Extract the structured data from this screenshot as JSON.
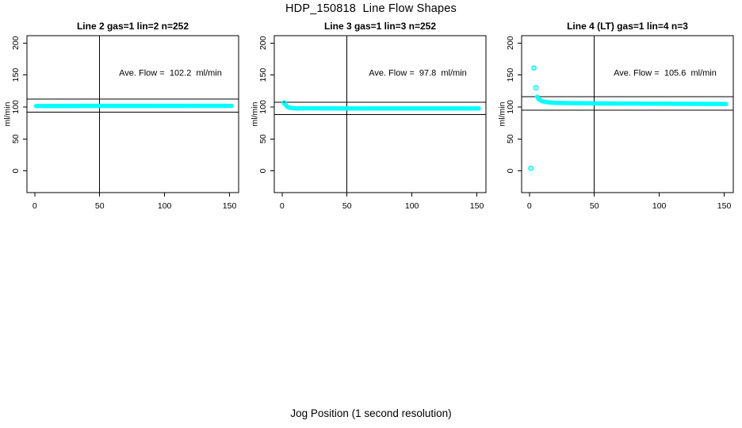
{
  "figure": {
    "title": "HDP_150818  Line Flow Shapes",
    "xlabel": "Jog Position (1 second resolution)",
    "background_color": "#FFFFFF",
    "foreground_color": "#000000",
    "point_color": "#00FFFF"
  },
  "chart_data": [
    {
      "type": "scatter",
      "title": "Line 2 gas=1 lin=2 n=252",
      "n": 252,
      "ave_flow_ml_min": 102.2,
      "annotation": "Ave. Flow =  102.2  ml/min",
      "annotation_xy": [
        104.5,
        154
      ],
      "ylabel": "ml/min",
      "x_ticks": [
        0,
        50,
        100,
        150
      ],
      "y_ticks": [
        0,
        50,
        100,
        150,
        200
      ],
      "xlim": [
        -6,
        157
      ],
      "ylim": [
        -34,
        211.5
      ],
      "grid": false,
      "legend": "none",
      "vline_x": 50,
      "ref_lines": [
        112.4,
        92.0
      ],
      "trace": [
        [
          1,
          101.4
        ],
        [
          40,
          101.6
        ],
        [
          90,
          101.6
        ],
        [
          151.5,
          101.7
        ]
      ],
      "outliers": []
    },
    {
      "type": "scatter",
      "title": "Line 3 gas=1 lin=3 n=252",
      "n": 252,
      "ave_flow_ml_min": 97.8,
      "annotation": "Ave. Flow =  97.8  ml/min",
      "annotation_xy": [
        104.5,
        154
      ],
      "ylabel": "ml/min",
      "x_ticks": [
        0,
        50,
        100,
        150
      ],
      "y_ticks": [
        0,
        50,
        100,
        150,
        200
      ],
      "xlim": [
        -6,
        157
      ],
      "ylim": [
        -34,
        211.5
      ],
      "grid": false,
      "legend": "none",
      "vline_x": 50,
      "ref_lines": [
        107.6,
        88.0
      ],
      "trace": [
        [
          2.5,
          103.5
        ],
        [
          4,
          100.5
        ],
        [
          5,
          99.2
        ],
        [
          7,
          98.3
        ],
        [
          10,
          97.9
        ],
        [
          60,
          97.7
        ],
        [
          151.5,
          97.6
        ]
      ],
      "outliers": [
        [
          1.5,
          106.5
        ]
      ]
    },
    {
      "type": "scatter",
      "title": "Line 4 (LT) gas=1 lin=4 n=3",
      "n": 3,
      "ave_flow_ml_min": 105.6,
      "annotation": "Ave. Flow =  105.6  ml/min",
      "annotation_xy": [
        104.5,
        154
      ],
      "ylabel": "ml/min",
      "x_ticks": [
        0,
        50,
        100,
        150
      ],
      "y_ticks": [
        0,
        50,
        100,
        150,
        200
      ],
      "xlim": [
        -6,
        157
      ],
      "ylim": [
        -34,
        211.5
      ],
      "grid": false,
      "legend": "none",
      "vline_x": 50,
      "ref_lines": [
        116.2,
        95.0
      ],
      "trace": [
        [
          6,
          116
        ],
        [
          7,
          112.5
        ],
        [
          8,
          111
        ],
        [
          10,
          108.8
        ],
        [
          14,
          107.3
        ],
        [
          20,
          106.4
        ],
        [
          40,
          105.7
        ],
        [
          80,
          105.2
        ],
        [
          120,
          104.9
        ],
        [
          151.5,
          104.6
        ]
      ],
      "outliers": [
        [
          1,
          4
        ],
        [
          3.5,
          161
        ],
        [
          5,
          130
        ]
      ]
    }
  ]
}
